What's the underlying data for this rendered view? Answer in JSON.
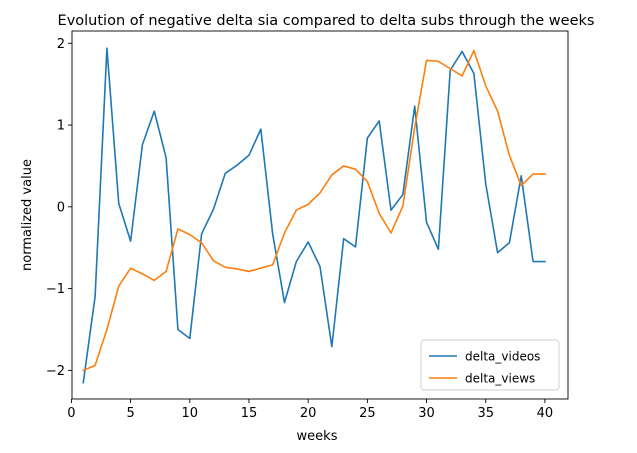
{
  "chart_data": {
    "type": "line",
    "title": "Evolution of negative delta sia compared to delta subs through the weeks",
    "xlabel": "weeks",
    "ylabel": "normalized value",
    "xlim": [
      0.05,
      41.95
    ],
    "ylim": [
      -2.35,
      2.15
    ],
    "xticks": [
      0,
      5,
      10,
      15,
      20,
      25,
      30,
      35,
      40
    ],
    "yticks": [
      -2,
      -1,
      0,
      1,
      2
    ],
    "grid": false,
    "legend": "lower right",
    "x": [
      1,
      2,
      3,
      4,
      5,
      6,
      7,
      8,
      9,
      10,
      11,
      12,
      13,
      14,
      15,
      16,
      17,
      18,
      19,
      20,
      21,
      22,
      23,
      24,
      25,
      26,
      27,
      28,
      29,
      30,
      31,
      32,
      33,
      34,
      35,
      36,
      37,
      38,
      39,
      40
    ],
    "series": [
      {
        "name": "delta_videos",
        "color": "#1f77b4",
        "values": [
          -2.15,
          -1.1,
          1.94,
          0.04,
          -0.42,
          0.76,
          1.17,
          0.6,
          -1.5,
          -1.61,
          -0.33,
          -0.03,
          0.41,
          0.51,
          0.63,
          0.95,
          -0.33,
          -1.17,
          -0.67,
          -0.43,
          -0.73,
          -1.71,
          -0.39,
          -0.49,
          0.84,
          1.05,
          -0.04,
          0.15,
          1.23,
          -0.19,
          -0.52,
          1.67,
          1.9,
          1.63,
          0.28,
          -0.56,
          -0.44,
          0.38,
          -0.67,
          -0.67
        ]
      },
      {
        "name": "delta_views",
        "color": "#ff7f0e",
        "values": [
          -2.0,
          -1.94,
          -1.5,
          -0.97,
          -0.75,
          -0.82,
          -0.9,
          -0.79,
          -0.27,
          -0.34,
          -0.44,
          -0.66,
          -0.74,
          -0.76,
          -0.79,
          -0.75,
          -0.71,
          -0.32,
          -0.04,
          0.03,
          0.17,
          0.39,
          0.5,
          0.46,
          0.31,
          -0.08,
          -0.32,
          0.01,
          0.97,
          1.79,
          1.78,
          1.69,
          1.6,
          1.91,
          1.48,
          1.17,
          0.63,
          0.26,
          0.4,
          0.4
        ]
      }
    ]
  }
}
